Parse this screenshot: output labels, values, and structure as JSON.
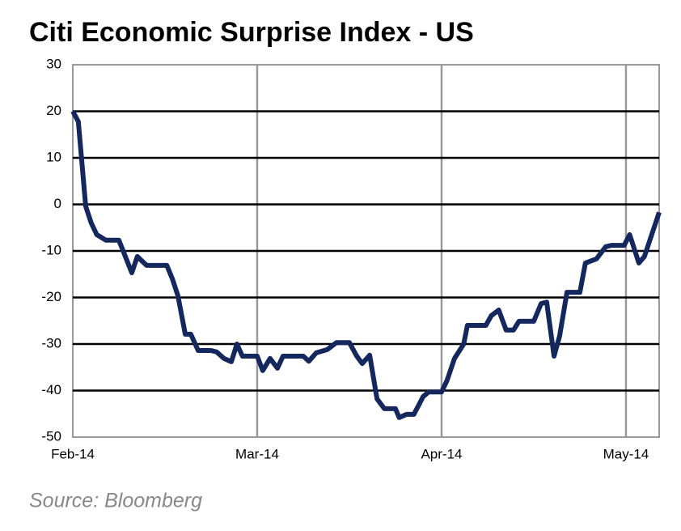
{
  "chart_data": {
    "type": "line",
    "title": "Citi Economic Surprise Index - US",
    "source": "Source: Bloomberg",
    "color": "#14285e",
    "grid": true,
    "x": [
      0,
      0.03,
      0.07,
      0.1,
      0.13,
      0.18,
      0.25,
      0.32,
      0.35,
      0.4,
      0.51,
      0.54,
      0.57,
      0.61,
      0.64,
      0.68,
      0.75,
      0.78,
      0.82,
      0.86,
      0.89,
      0.92,
      1.0,
      1.03,
      1.07,
      1.11,
      1.14,
      1.25,
      1.28,
      1.32,
      1.38,
      1.43,
      1.5,
      1.54,
      1.57,
      1.61,
      1.65,
      1.69,
      1.75,
      1.77,
      1.81,
      1.85,
      1.9,
      1.93,
      2.0,
      2.03,
      2.07,
      2.12,
      2.14,
      2.24,
      2.27,
      2.31,
      2.35,
      2.39,
      2.42,
      2.5,
      2.54,
      2.57,
      2.61,
      2.64,
      2.68,
      2.75,
      2.78,
      2.84,
      2.89,
      2.92,
      2.99,
      3.02,
      3.07,
      3.1,
      3.18
    ],
    "values": [
      20,
      17.8,
      -0.4,
      -4,
      -6.5,
      -7.7,
      -7.7,
      -14.7,
      -11.2,
      -13.1,
      -13.1,
      -16,
      -19.6,
      -27.9,
      -27.9,
      -31.4,
      -31.4,
      -31.7,
      -33.1,
      -33.8,
      -30,
      -32.6,
      -32.6,
      -35.7,
      -33.1,
      -35.2,
      -32.6,
      -32.6,
      -33.7,
      -31.9,
      -31.2,
      -29.7,
      -29.7,
      -32.6,
      -34.2,
      -32.4,
      -41.8,
      -43.9,
      -43.9,
      -45.8,
      -45.1,
      -45.1,
      -41.3,
      -40.3,
      -40.3,
      -37.8,
      -33.1,
      -30,
      -26,
      -26,
      -23.9,
      -22.7,
      -27,
      -27,
      -25.1,
      -25.1,
      -21.3,
      -21,
      -32.6,
      -28.3,
      -18.9,
      -18.9,
      -12.6,
      -11.7,
      -9.1,
      -8.8,
      -8.8,
      -6.5,
      -12.6,
      -11.2,
      -1.7
    ],
    "xlim": [
      0,
      3.18
    ],
    "xticks": [
      {
        "value": 0,
        "label": "Feb-14"
      },
      {
        "value": 1,
        "label": "Mar-14"
      },
      {
        "value": 2,
        "label": "Apr-14"
      },
      {
        "value": 3,
        "label": "May-14"
      }
    ],
    "ylim": [
      -50,
      30
    ],
    "yticks": [
      -50,
      -40,
      -30,
      -20,
      -10,
      0,
      10,
      20,
      30
    ]
  }
}
